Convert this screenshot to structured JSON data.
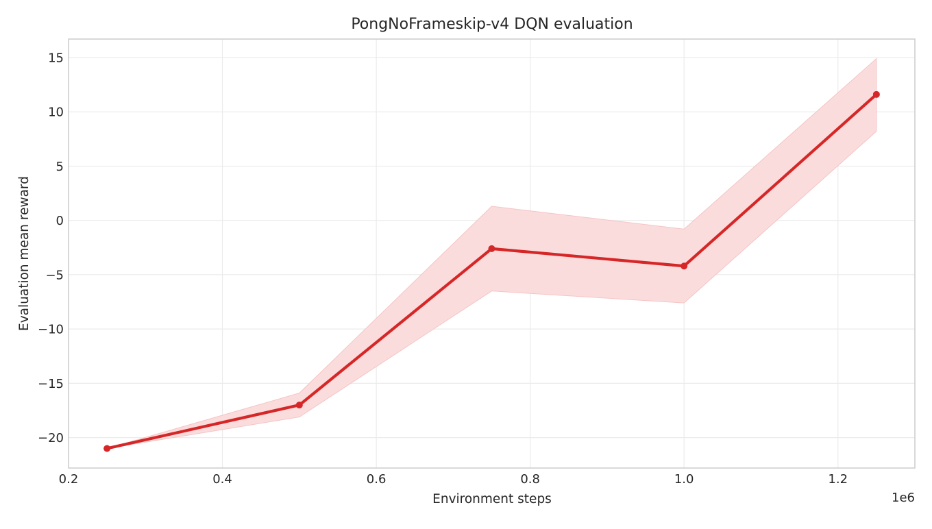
{
  "chart_data": {
    "type": "line",
    "title": "PongNoFrameskip-v4 DQN evaluation",
    "xlabel": "Environment steps",
    "ylabel": "Evaluation mean reward",
    "x_offset_label": "1e6",
    "xlim": [
      0.2,
      1.3
    ],
    "ylim": [
      -22.8,
      16.7
    ],
    "x_ticks": [
      0.2,
      0.4,
      0.6,
      0.8,
      1.0,
      1.2
    ],
    "x_tick_labels": [
      "0.2",
      "0.4",
      "0.6",
      "0.8",
      "1.0",
      "1.2"
    ],
    "y_ticks": [
      -20,
      -15,
      -10,
      -5,
      0,
      5,
      10,
      15
    ],
    "y_tick_labels": [
      "−20",
      "−15",
      "−10",
      "−5",
      "0",
      "5",
      "10",
      "15"
    ],
    "grid": true,
    "series": [
      {
        "x": [
          0.25,
          0.5,
          0.75,
          1.0,
          1.25
        ],
        "values": [
          -21.0,
          -17.0,
          -2.6,
          -4.2,
          11.6
        ],
        "lower": [
          -21.0,
          -18.1,
          -6.5,
          -7.6,
          8.2
        ],
        "upper": [
          -21.0,
          -15.9,
          1.3,
          -0.8,
          14.9
        ],
        "color": "#d62728",
        "band_color": "#fbdcdc"
      }
    ]
  }
}
